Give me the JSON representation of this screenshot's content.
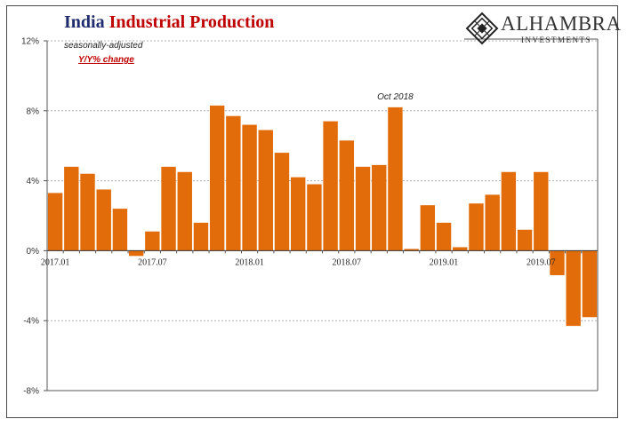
{
  "header": {
    "title_part1": "India",
    "title_part2": "Industrial Production",
    "subtitle1": "seasonally-adjusted",
    "subtitle2": "Y/Y% change"
  },
  "logo": {
    "name": "ALHAMBRA",
    "tagline": "INVESTMENTS"
  },
  "colors": {
    "bar": "#e36c0a",
    "title_navy": "#1f2d6e",
    "title_red": "#c00000",
    "grid": "#b0b0b0"
  },
  "chart_data": {
    "type": "bar",
    "title": "India Industrial Production",
    "ylabel": "",
    "xlabel": "",
    "ylim": [
      -8,
      12
    ],
    "yticks": [
      12,
      8,
      4,
      0,
      -4,
      -8
    ],
    "ytick_labels": [
      "12%",
      "8%",
      "4%",
      "0%",
      "-4%",
      "-8%"
    ],
    "grid": "horizontal dashed",
    "categories": [
      "2017.01",
      "2017.02",
      "2017.03",
      "2017.04",
      "2017.05",
      "2017.06",
      "2017.07",
      "2017.08",
      "2017.09",
      "2017.10",
      "2017.11",
      "2017.12",
      "2018.01",
      "2018.02",
      "2018.03",
      "2018.04",
      "2018.05",
      "2018.06",
      "2018.07",
      "2018.08",
      "2018.09",
      "2018.10",
      "2018.11",
      "2018.12",
      "2019.01",
      "2019.02",
      "2019.03",
      "2019.04",
      "2019.05",
      "2019.06",
      "2019.07",
      "2019.08",
      "2019.09",
      "2019.10"
    ],
    "x_tick_labels": [
      {
        "index": 0,
        "label": "2017.01"
      },
      {
        "index": 6,
        "label": "2017.07"
      },
      {
        "index": 12,
        "label": "2018.01"
      },
      {
        "index": 18,
        "label": "2018.07"
      },
      {
        "index": 24,
        "label": "2019.01"
      },
      {
        "index": 30,
        "label": "2019.07"
      }
    ],
    "values": [
      3.3,
      4.8,
      4.4,
      3.5,
      2.4,
      -0.3,
      1.1,
      4.8,
      4.5,
      1.6,
      8.3,
      7.7,
      7.2,
      6.9,
      5.6,
      4.2,
      3.8,
      7.4,
      6.3,
      4.8,
      4.9,
      8.2,
      0.1,
      2.6,
      1.6,
      0.2,
      2.7,
      3.2,
      4.5,
      1.2,
      4.5,
      -1.4,
      -4.3,
      -3.8
    ],
    "annotations": [
      {
        "index": 21,
        "text": "Oct 2018"
      }
    ]
  }
}
